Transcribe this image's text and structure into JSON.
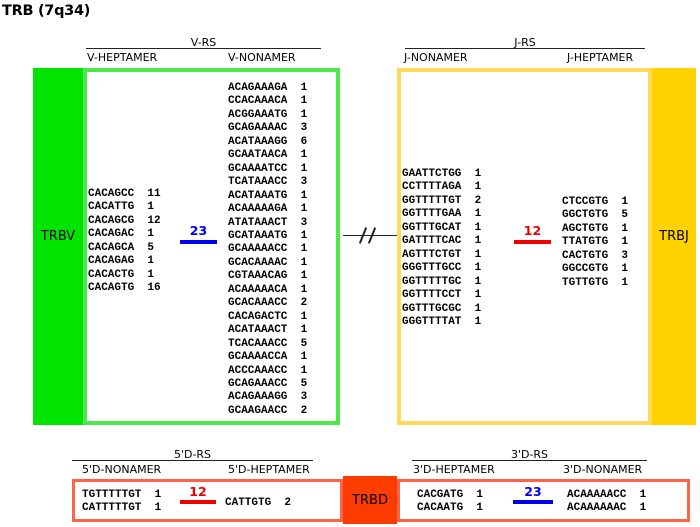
{
  "title": "TRB (7q34)",
  "colors": {
    "trbv_green": "#00E400",
    "green_border": "#4CE94C",
    "trbj_gold": "#FFD200",
    "gold_border": "#FFD95A",
    "trbd_orange": "#FF3C00",
    "tomato_border": "#FF6347",
    "spacer_23_blue": "#0000F0",
    "spacer_12_red": "#EE0000"
  },
  "v_rs": {
    "group_label": "V-RS",
    "col_left": "V-HEPTAMER",
    "col_right": "V-NONAMER",
    "gene": "TRBV",
    "spacer": "23",
    "heptamers": [
      "CACAGCC  11",
      "CACATTG  1",
      "CACAGCG  12",
      "CACAGAC  1",
      "CACAGCA  5",
      "CACAGAG  1",
      "CACACTG  1",
      "CACAGTG  16"
    ],
    "nonamers": [
      "ACAGAAAGA  1",
      "CCACAAACA  1",
      "ACGGAAATG  1",
      "GCAGAAAAC  3",
      "ACATAAAGG  6",
      "GCAATAACA  1",
      "GCAAAATCC  1",
      "TCATAAACC  3",
      "ACATAAATG  1",
      "ACAAAAAGA  1",
      "ATATAAACT  3",
      "GCATAAATG  1",
      "GCAAAAACC  1",
      "GCACAAAAC  1",
      "CGTAAACAG  1",
      "ACAAAAACA  1",
      "GCACAAACC  2",
      "CACAGACTC  1",
      "ACATAAACT  1",
      "TCACAAACC  5",
      "GCAAAACCA  1",
      "ACCCAAACC  1",
      "GCAGAAACC  5",
      "ACAGAAAGG  3",
      "GCAAGAACC  2"
    ]
  },
  "j_rs": {
    "group_label": "J-RS",
    "col_left": "J-NONAMER",
    "col_right": "J-HEPTAMER",
    "gene": "TRBJ",
    "spacer": "12",
    "nonamers": [
      "GAATTCTGG  1",
      "CCTTTTAGA  1",
      "GGTTTTTGT  2",
      "GGTTTTGAA  1",
      "GGTTTGCAT  1",
      "GATTTTCAC  1",
      "AGTTTCTGT  1",
      "GGGTTTGCC  1",
      "GGTTTTTGC  1",
      "GGTTTTCCT  1",
      "GGTTTGCGC  1",
      "GGGTTTTAT  1"
    ],
    "heptamers": [
      "CTCCGTG  1",
      "GGCTGTG  5",
      "AGCTGTG  1",
      "TTATGTG  1",
      "CACTGTG  3",
      "GGCCGTG  1",
      "TGTTGTG  1"
    ]
  },
  "trbd_label": "TRBD",
  "d5_rs": {
    "group_label": "5'D-RS",
    "col_left": "5'D-NONAMER",
    "col_right": "5'D-HEPTAMER",
    "spacer": "12",
    "nonamers": [
      "TGTTTTTGT  1",
      "CATTTTTGT  1"
    ],
    "heptamers": [
      "CATTGTG  2"
    ]
  },
  "d3_rs": {
    "group_label": "3'D-RS",
    "col_left": "3'D-HEPTAMER",
    "col_right": "3'D-NONAMER",
    "spacer": "23",
    "heptamers": [
      "CACGATG  1",
      "CACAATG  1"
    ],
    "nonamers": [
      "ACAAAAACC  1",
      "ACAAAAAAC  1"
    ]
  }
}
